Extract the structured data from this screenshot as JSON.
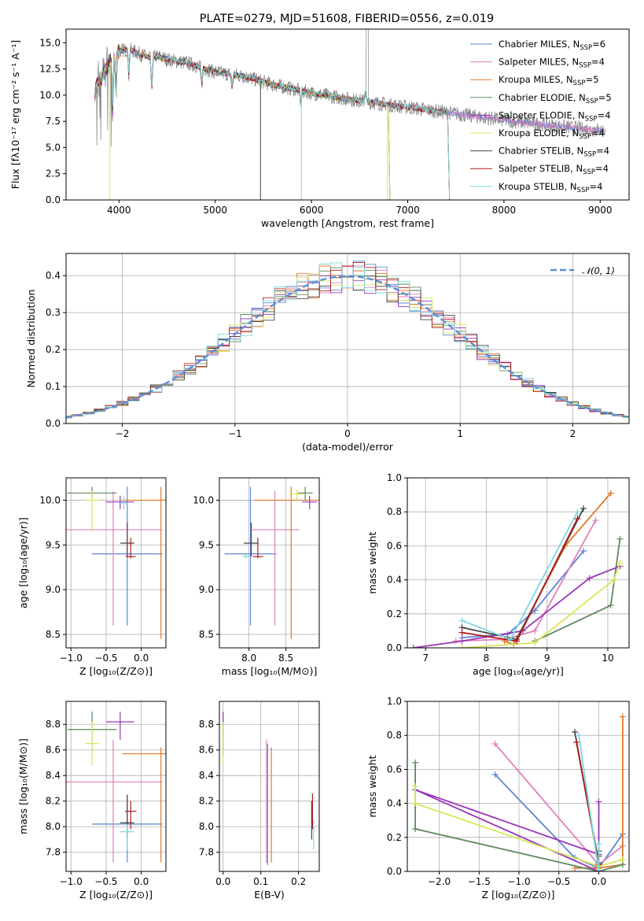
{
  "chart_data": [
    {
      "id": "spectrum",
      "type": "line",
      "title": "PLATE=0279, MJD=51608, FIBERID=0556, z=0.019",
      "xlabel": "wavelength [Angstrom, rest frame]",
      "ylabel": "Flux [fλ10⁻¹⁷ erg cm⁻² s⁻¹ A⁻¹]",
      "xlim": [
        3450,
        9300
      ],
      "ylim": [
        0,
        16.3
      ],
      "xticks": [
        "4000",
        "5000",
        "6000",
        "7000",
        "8000",
        "9000"
      ],
      "xtick_values": [
        4000,
        5000,
        6000,
        7000,
        8000,
        9000
      ],
      "yticks": [
        "0.0",
        "2.5",
        "5.0",
        "7.5",
        "10.0",
        "12.5",
        "15.0"
      ],
      "ytick_values": [
        0,
        2.5,
        5,
        7.5,
        10,
        12.5,
        15
      ],
      "grid": false,
      "legend_position": "top-right",
      "continuum": {
        "x": [
          3750,
          3800,
          3850,
          3900,
          3950,
          4000,
          4100,
          4200,
          4300,
          4400,
          4500,
          4700,
          5000,
          5300,
          5600,
          6000,
          6400,
          6800,
          7200,
          7600,
          8000,
          8400,
          8800,
          9050
        ],
        "y": [
          10.5,
          11.5,
          12.3,
          13.0,
          13.8,
          14.2,
          14.4,
          14.0,
          13.6,
          13.7,
          13.4,
          13.1,
          12.2,
          11.8,
          11.0,
          10.2,
          9.6,
          9.1,
          8.6,
          8.1,
          7.6,
          7.2,
          6.8,
          6.6
        ]
      },
      "series": [
        {
          "name": "Chabrier MILES, N",
          "sub": "SSP",
          "suffix": "=6",
          "color": "#5b86d6",
          "x_end": 9050
        },
        {
          "name": "Salpeter MILES, N",
          "sub": "SSP",
          "suffix": "=4",
          "color": "#e07fb8",
          "x_end": 9050
        },
        {
          "name": "Kroupa MILES, N",
          "sub": "SSP",
          "suffix": "=5",
          "color": "#e0782a",
          "x_end": 7420
        },
        {
          "name": "Chabrier ELODIE, N",
          "sub": "SSP",
          "suffix": "=5",
          "color": "#5e8a5e",
          "x_end": 6800
        },
        {
          "name": "Salpeter ELODIE, N",
          "sub": "SSP",
          "suffix": "=4",
          "color": "#9b36b8",
          "x_end": 6800
        },
        {
          "name": "Kroupa ELODIE, N",
          "sub": "SSP",
          "suffix": "=4",
          "color": "#d4e85a",
          "x_end": 6800
        },
        {
          "name": "Chabrier STELIB, N",
          "sub": "SSP",
          "suffix": "=4",
          "color": "#444444",
          "x_end": 7420
        },
        {
          "name": "Salpeter STELIB, N",
          "sub": "SSP",
          "suffix": "=4",
          "color": "#b01c1c",
          "x_end": 7420
        },
        {
          "name": "Kroupa STELIB, N",
          "sub": "SSP",
          "suffix": "=4",
          "color": "#7fd8de",
          "x_end": 7420
        }
      ],
      "data_color": "#808080"
    },
    {
      "id": "residuals",
      "type": "histogram",
      "xlabel": "(data-model)/error",
      "ylabel": "Normed distribution",
      "xlim": [
        -2.5,
        2.5
      ],
      "ylim": [
        0,
        0.46
      ],
      "xticks": [
        "−2",
        "−1",
        "0",
        "1",
        "2"
      ],
      "xtick_values": [
        -2,
        -1,
        0,
        1,
        2
      ],
      "yticks": [
        "0.0",
        "0.1",
        "0.2",
        "0.3",
        "0.4"
      ],
      "ytick_values": [
        0,
        0.1,
        0.2,
        0.3,
        0.4
      ],
      "grid": true,
      "legend": "𝒩(0, 1)",
      "legend_position": "top-right",
      "gaussian_color": "#5b8fd6",
      "bin_width": 0.1
    },
    {
      "id": "age-vs-Z",
      "type": "scatter",
      "xlabel": "Z [log₁₀(Z/Z⊙)]",
      "ylabel": "age  [log₁₀(age/yr)]",
      "xlim": [
        -1.07,
        0.35
      ],
      "ylim": [
        8.35,
        10.25
      ],
      "xticks": [
        "−1.0",
        "−0.5",
        "0.0"
      ],
      "xtick_values": [
        -1,
        -0.5,
        0
      ],
      "yticks": [
        "8.5",
        "9.0",
        "9.5",
        "10.0"
      ],
      "ytick_values": [
        8.5,
        9.0,
        9.5,
        10.0
      ],
      "points": [
        {
          "x": -0.2,
          "xerr": 0.5,
          "y": 9.4,
          "ylo": 8.6,
          "yhi": 10.15,
          "c": "#5b86d6"
        },
        {
          "x": -0.4,
          "xerr": 0.7,
          "y": 9.67,
          "ylo": 8.6,
          "yhi": 10.1,
          "c": "#e07fb8"
        },
        {
          "x": 0.28,
          "xerr": 0.55,
          "y": 10.0,
          "ylo": 8.45,
          "yhi": 10.15,
          "c": "#e0782a"
        },
        {
          "x": -0.7,
          "xerr": 0.35,
          "y": 10.08,
          "ylo": 10.0,
          "yhi": 10.15,
          "c": "#5e8a5e"
        },
        {
          "x": -0.3,
          "xerr": 0.2,
          "y": 9.98,
          "ylo": 9.9,
          "yhi": 10.05,
          "c": "#9b36b8"
        },
        {
          "x": -0.7,
          "xerr": 0.1,
          "y": 10.0,
          "ylo": 9.65,
          "yhi": 10.1,
          "c": "#d4e85a"
        },
        {
          "x": -0.2,
          "xerr": 0.1,
          "y": 9.52,
          "ylo": 9.37,
          "yhi": 9.75,
          "c": "#444444"
        },
        {
          "x": -0.15,
          "xerr": 0.07,
          "y": 9.37,
          "ylo": 9.35,
          "yhi": 9.58,
          "c": "#b01c1c"
        },
        {
          "x": -0.25,
          "xerr": 0.05,
          "y": 9.97,
          "ylo": 9.9,
          "yhi": 10.05,
          "c": "#7fd8de"
        }
      ]
    },
    {
      "id": "age-vs-mass",
      "type": "scatter",
      "xlabel": "mass [log₁₀(M/M⊙)]",
      "ylabel": "",
      "xlim": [
        7.6,
        8.95
      ],
      "ylim": [
        8.35,
        10.25
      ],
      "xticks": [
        "8.0",
        "8.5"
      ],
      "xtick_values": [
        8.0,
        8.5
      ],
      "yticks": [
        "8.5",
        "9.0",
        "9.5",
        "10.0"
      ],
      "ytick_values": [
        8.5,
        9.0,
        9.5,
        10.0
      ],
      "points": [
        {
          "x": 8.02,
          "xerr": 0.35,
          "y": 9.4,
          "ylo": 8.6,
          "yhi": 10.15,
          "c": "#5b86d6"
        },
        {
          "x": 8.35,
          "xerr": 0.33,
          "y": 9.67,
          "ylo": 8.6,
          "yhi": 10.1,
          "c": "#e07fb8"
        },
        {
          "x": 8.57,
          "xerr": 0.5,
          "y": 10.0,
          "ylo": 8.45,
          "yhi": 10.15,
          "c": "#e0782a"
        },
        {
          "x": 8.76,
          "xerr": 0.1,
          "y": 10.08,
          "ylo": 10.0,
          "yhi": 10.15,
          "c": "#5e8a5e"
        },
        {
          "x": 8.82,
          "xerr": 0.1,
          "y": 9.98,
          "ylo": 9.9,
          "yhi": 10.05,
          "c": "#9b36b8"
        },
        {
          "x": 8.65,
          "xerr": 0.1,
          "y": 10.07,
          "ylo": 10.0,
          "yhi": 10.12,
          "c": "#d4e85a"
        },
        {
          "x": 8.03,
          "xerr": 0.1,
          "y": 9.52,
          "ylo": 9.37,
          "yhi": 9.75,
          "c": "#444444"
        },
        {
          "x": 8.12,
          "xerr": 0.07,
          "y": 9.37,
          "ylo": 9.35,
          "yhi": 9.58,
          "c": "#b01c1c"
        },
        {
          "x": 7.96,
          "xerr": 0.05,
          "y": 9.37,
          "ylo": 9.35,
          "yhi": 9.4,
          "c": "#7fd8de"
        }
      ]
    },
    {
      "id": "weight-vs-age",
      "type": "line",
      "xlabel": "age  [log₁₀(age/yr)]",
      "ylabel": "mass weight",
      "xlim": [
        6.7,
        10.35
      ],
      "ylim": [
        0,
        1.0
      ],
      "xticks": [
        "7",
        "8",
        "9",
        "10"
      ],
      "xtick_values": [
        7,
        8,
        9,
        10
      ],
      "yticks": [
        "0.0",
        "0.2",
        "0.4",
        "0.6",
        "0.8",
        "1.0"
      ],
      "ytick_values": [
        0,
        0.2,
        0.4,
        0.6,
        0.8,
        1.0
      ],
      "grid": true,
      "series": [
        {
          "c": "#5b86d6",
          "x": [
            7.6,
            8.35,
            8.8,
            9.6
          ],
          "y": [
            0.06,
            0.08,
            0.22,
            0.57
          ]
        },
        {
          "c": "#e07fb8",
          "x": [
            7.5,
            8.3,
            8.8,
            9.8
          ],
          "y": [
            0.04,
            0.05,
            0.1,
            0.75
          ]
        },
        {
          "c": "#e0782a",
          "x": [
            8.3,
            8.45,
            9.3,
            10.05
          ],
          "y": [
            0.04,
            0.02,
            0.6,
            0.91
          ]
        },
        {
          "c": "#5e8a5e",
          "x": [
            8.8,
            10.05,
            10.2
          ],
          "y": [
            0.04,
            0.25,
            0.64
          ]
        },
        {
          "c": "#9b36b8",
          "x": [
            6.8,
            7.6,
            8.6,
            9.7,
            10.2
          ],
          "y": [
            0.0,
            0.04,
            0.1,
            0.41,
            0.48
          ]
        },
        {
          "c": "#d4e85a",
          "x": [
            7.6,
            8.8,
            10.1,
            10.2
          ],
          "y": [
            0.0,
            0.03,
            0.4,
            0.5
          ]
        },
        {
          "c": "#444444",
          "x": [
            7.6,
            8.5,
            9.6
          ],
          "y": [
            0.12,
            0.05,
            0.82
          ]
        },
        {
          "c": "#b01c1c",
          "x": [
            7.6,
            8.5,
            9.5
          ],
          "y": [
            0.09,
            0.04,
            0.76
          ]
        },
        {
          "c": "#7fd8de",
          "x": [
            7.6,
            8.4,
            9.5
          ],
          "y": [
            0.16,
            0.05,
            0.8
          ]
        }
      ]
    },
    {
      "id": "mass-vs-Z",
      "type": "scatter",
      "xlabel": "Z [log₁₀(Z/Z⊙)]",
      "ylabel": "mass [log₁₀(M/M⊙)]",
      "xlim": [
        -1.07,
        0.35
      ],
      "ylim": [
        7.65,
        8.98
      ],
      "xticks": [
        "−1.0",
        "−0.5",
        "0.0"
      ],
      "xtick_values": [
        -1,
        -0.5,
        0
      ],
      "yticks": [
        "7.8",
        "8.0",
        "8.2",
        "8.4",
        "8.6",
        "8.8"
      ],
      "ytick_values": [
        7.8,
        8.0,
        8.2,
        8.4,
        8.6,
        8.8
      ],
      "points": [
        {
          "x": -0.2,
          "xerr": 0.5,
          "y": 8.02,
          "ylo": 7.72,
          "yhi": 8.25,
          "c": "#5b86d6"
        },
        {
          "x": -0.4,
          "xerr": 0.7,
          "y": 8.35,
          "ylo": 7.72,
          "yhi": 8.68,
          "c": "#e07fb8"
        },
        {
          "x": 0.28,
          "xerr": 0.55,
          "y": 8.57,
          "ylo": 7.72,
          "yhi": 8.62,
          "c": "#e0782a"
        },
        {
          "x": -0.7,
          "xerr": 0.35,
          "y": 8.76,
          "ylo": 8.57,
          "yhi": 8.9,
          "c": "#5e8a5e"
        },
        {
          "x": -0.3,
          "xerr": 0.2,
          "y": 8.82,
          "ylo": 8.68,
          "yhi": 8.9,
          "c": "#9b36b8"
        },
        {
          "x": -0.7,
          "xerr": 0.1,
          "y": 8.65,
          "ylo": 8.48,
          "yhi": 8.82,
          "c": "#d4e85a"
        },
        {
          "x": -0.2,
          "xerr": 0.1,
          "y": 8.03,
          "ylo": 7.9,
          "yhi": 8.25,
          "c": "#444444"
        },
        {
          "x": -0.15,
          "xerr": 0.08,
          "y": 8.12,
          "ylo": 7.98,
          "yhi": 8.2,
          "c": "#b01c1c"
        },
        {
          "x": -0.2,
          "xerr": 0.1,
          "y": 7.96,
          "ylo": 7.82,
          "yhi": 8.02,
          "c": "#7fd8de"
        }
      ]
    },
    {
      "id": "mass-vs-ebv",
      "type": "scatter",
      "xlabel": "E(B-V)",
      "ylabel": "",
      "xlim": [
        -0.01,
        0.255
      ],
      "ylim": [
        7.65,
        8.98
      ],
      "xticks": [
        "0.0",
        "0.1",
        "0.2"
      ],
      "xtick_values": [
        0,
        0.1,
        0.2
      ],
      "yticks": [
        "7.8",
        "8.0",
        "8.2",
        "8.4",
        "8.6",
        "8.8"
      ],
      "ytick_values": [
        7.8,
        8.0,
        8.2,
        8.4,
        8.6,
        8.8
      ],
      "points": [
        {
          "x": 0.118,
          "xerr": 0,
          "y": 8.02,
          "ylo": 7.7,
          "yhi": 8.65,
          "c": "#5b86d6"
        },
        {
          "x": 0.115,
          "xerr": 0,
          "y": 8.35,
          "ylo": 7.72,
          "yhi": 8.68,
          "c": "#e07fb8"
        },
        {
          "x": 0.128,
          "xerr": 0,
          "y": 8.57,
          "ylo": 7.72,
          "yhi": 8.62,
          "c": "#e0782a"
        },
        {
          "x": 0.0,
          "xerr": 0,
          "y": 8.76,
          "ylo": 8.55,
          "yhi": 8.85,
          "c": "#5e8a5e"
        },
        {
          "x": 0.0,
          "xerr": 0,
          "y": 8.82,
          "ylo": 8.72,
          "yhi": 8.9,
          "c": "#9b36b8"
        },
        {
          "x": 0.0,
          "xerr": 0,
          "y": 8.65,
          "ylo": 8.48,
          "yhi": 8.82,
          "c": "#d4e85a"
        },
        {
          "x": 0.235,
          "xerr": 0,
          "y": 8.03,
          "ylo": 7.9,
          "yhi": 8.2,
          "c": "#444444"
        },
        {
          "x": 0.237,
          "xerr": 0,
          "y": 8.12,
          "ylo": 7.98,
          "yhi": 8.26,
          "c": "#b01c1c"
        },
        {
          "x": 0.24,
          "xerr": 0,
          "y": 7.96,
          "ylo": 7.82,
          "yhi": 8.05,
          "c": "#7fd8de"
        }
      ]
    },
    {
      "id": "weight-vs-Z",
      "type": "line",
      "xlabel": "Z [log₁₀(Z/Z⊙)]",
      "ylabel": "mass weight",
      "xlim": [
        -2.4,
        0.38
      ],
      "ylim": [
        0,
        1.0
      ],
      "xticks": [
        "−2.0",
        "−1.5",
        "−1.0",
        "−0.5",
        "0.0"
      ],
      "xtick_values": [
        -2,
        -1.5,
        -1,
        -0.5,
        0
      ],
      "yticks": [
        "0.0",
        "0.2",
        "0.4",
        "0.6",
        "0.8",
        "1.0"
      ],
      "ytick_values": [
        0,
        0.2,
        0.4,
        0.6,
        0.8,
        1.0
      ],
      "grid": true,
      "series": [
        {
          "c": "#5b86d6",
          "x": [
            -1.3,
            -0.3,
            0.0,
            0.3
          ],
          "y": [
            0.57,
            0.08,
            0.02,
            0.22
          ]
        },
        {
          "c": "#e07fb8",
          "x": [
            -1.3,
            0.0,
            0.3
          ],
          "y": [
            0.75,
            0.04,
            0.15
          ]
        },
        {
          "c": "#e0782a",
          "x": [
            -0.3,
            0.0,
            0.3,
            0.3
          ],
          "y": [
            0.02,
            0.02,
            0.04,
            0.91
          ]
        },
        {
          "c": "#5e8a5e",
          "x": [
            -2.3,
            -2.3,
            0.0,
            0.3
          ],
          "y": [
            0.64,
            0.25,
            0.0,
            0.04
          ]
        },
        {
          "c": "#9b36b8",
          "x": [
            0.0,
            0.0,
            -2.3,
            0.0
          ],
          "y": [
            0.41,
            0.0,
            0.48,
            0.1
          ]
        },
        {
          "c": "#d4e85a",
          "x": [
            -2.3,
            -2.3,
            0.0,
            0.3
          ],
          "y": [
            0.5,
            0.4,
            0.03,
            0.07
          ]
        },
        {
          "c": "#444444",
          "x": [
            -0.3,
            0.0,
            0.0
          ],
          "y": [
            0.82,
            0.05,
            0.12
          ]
        },
        {
          "c": "#b01c1c",
          "x": [
            -0.28,
            0.0,
            0.0
          ],
          "y": [
            0.76,
            0.04,
            0.09
          ]
        },
        {
          "c": "#7fd8de",
          "x": [
            -0.25,
            0.0,
            0.0
          ],
          "y": [
            0.8,
            0.0,
            0.16
          ]
        }
      ]
    }
  ]
}
